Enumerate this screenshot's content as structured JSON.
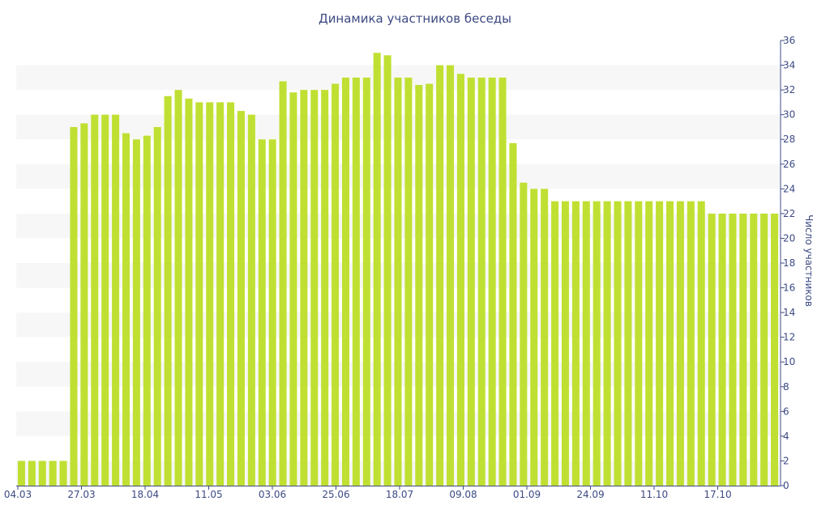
{
  "chart_data": {
    "type": "bar",
    "title": "Динамика участников беседы",
    "ylabel": "Число участников",
    "xlabel": "",
    "ylim": [
      0,
      36
    ],
    "y_ticks": [
      0,
      2,
      4,
      6,
      8,
      10,
      12,
      14,
      16,
      18,
      20,
      22,
      24,
      26,
      28,
      30,
      32,
      34,
      36
    ],
    "grid": "alternating-bands",
    "legend": "none",
    "x_ticks": [
      "04.03",
      "27.03",
      "18.04",
      "11.05",
      "03.06",
      "25.06",
      "18.07",
      "09.08",
      "01.09",
      "24.09",
      "11.10",
      "17.10"
    ],
    "values": [
      2,
      2,
      2,
      2,
      2,
      29,
      29.3,
      30,
      30,
      30,
      28.5,
      28,
      28.3,
      29,
      31.5,
      32,
      31.3,
      31,
      31,
      31,
      31,
      30.3,
      30,
      28,
      28,
      32.7,
      31.8,
      32,
      32,
      32,
      32.5,
      33,
      33,
      33,
      35,
      34.8,
      33,
      33,
      32.4,
      32.5,
      34,
      34,
      33.3,
      33,
      33,
      33,
      33,
      27.7,
      24.5,
      24,
      24,
      23,
      23,
      23,
      23,
      23,
      23,
      23,
      23,
      23,
      23,
      23,
      23,
      23,
      23,
      23,
      22,
      22,
      22,
      22,
      22,
      22,
      22
    ],
    "colors": {
      "bar": "#bfe032",
      "band": "#f7f7f7",
      "text": "#3d4a84",
      "axis": "#3d4a84"
    }
  }
}
